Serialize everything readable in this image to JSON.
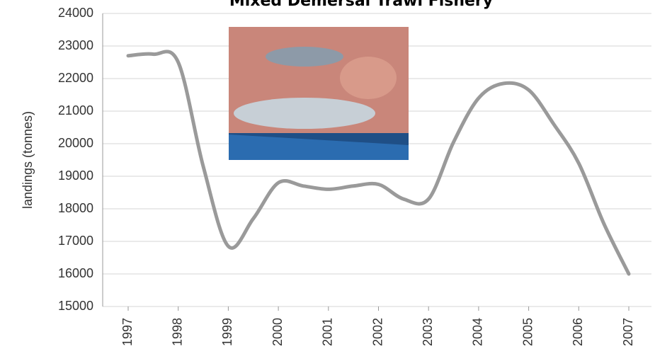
{
  "chart_data": {
    "type": "line",
    "title": "Mixed Demersal Trawl Fishery",
    "y_label": "landings (tonnes)",
    "x": [
      1997,
      1997.5,
      1998,
      1998.5,
      1999,
      1999.5,
      2000,
      2000.5,
      2001,
      2001.5,
      2002,
      2002.5,
      2003,
      2003.5,
      2004,
      2004.5,
      2005,
      2005.5,
      2006,
      2006.5,
      2007
    ],
    "series": [
      {
        "name": "landings",
        "color": "#9a9a9a",
        "values": [
          22700,
          22750,
          22500,
          19300,
          16850,
          17700,
          18800,
          18700,
          18600,
          18700,
          18750,
          18300,
          18300,
          20050,
          21400,
          21850,
          21650,
          20600,
          19400,
          17550,
          16000
        ]
      }
    ],
    "xlim": [
      1997,
      2007
    ],
    "xticks": [
      1997,
      1998,
      1999,
      2000,
      2001,
      2002,
      2003,
      2004,
      2005,
      2006,
      2007
    ],
    "ylim": [
      15000,
      24000
    ],
    "yticks": [
      15000,
      16000,
      17000,
      18000,
      19000,
      20000,
      21000,
      22000,
      23000,
      24000
    ],
    "grid": true
  }
}
